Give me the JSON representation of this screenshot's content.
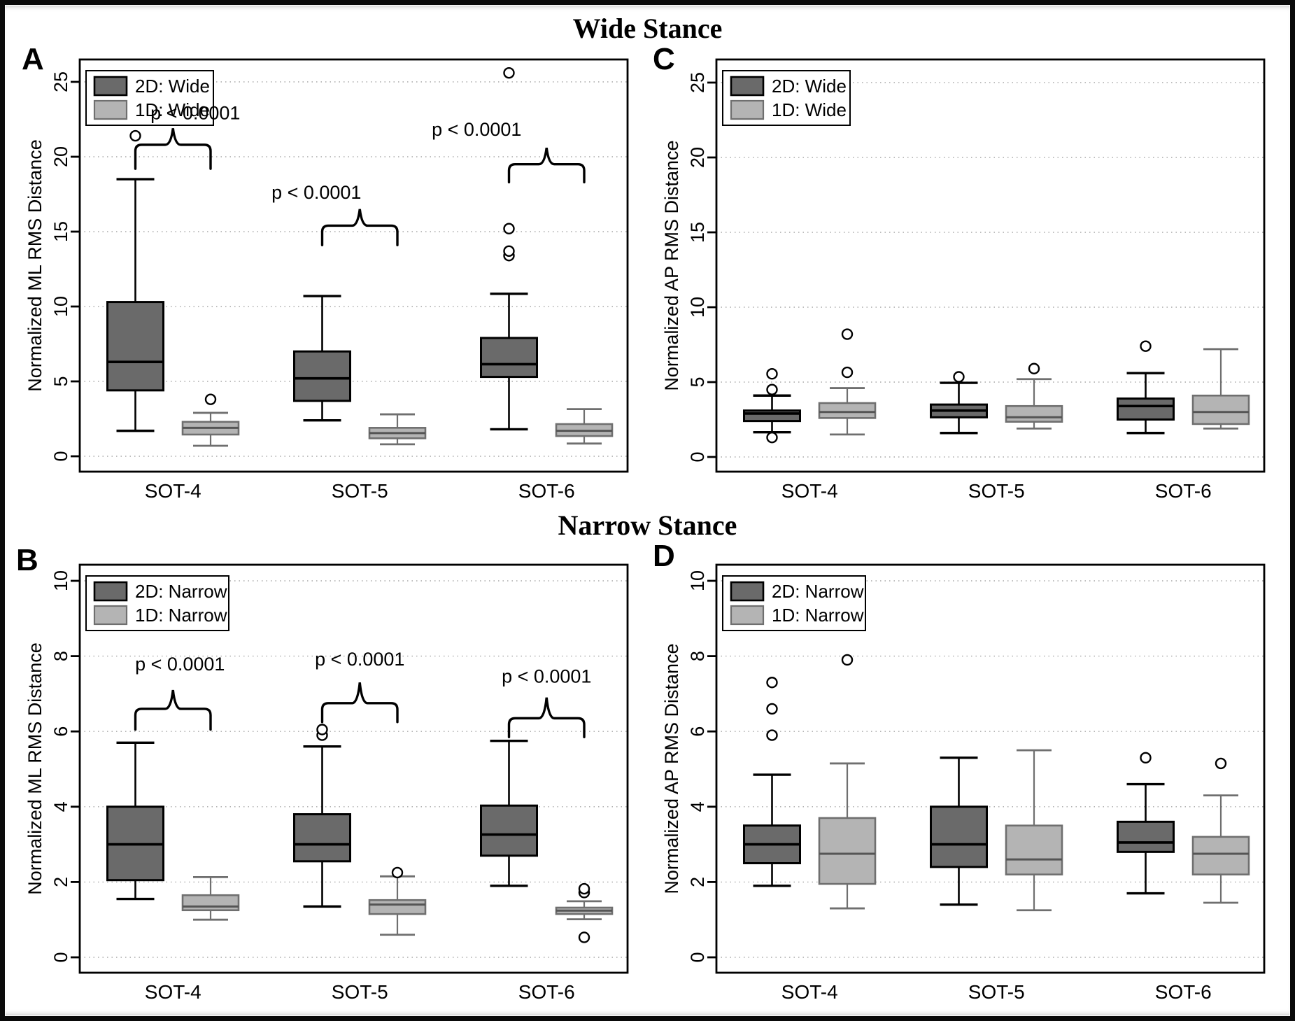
{
  "figure": {
    "top_title": "Wide Stance",
    "bottom_title": "Narrow Stance"
  },
  "colors": {
    "box_2d": "#6a6a6a",
    "box_1d": "#b4b4b4",
    "stroke_2d": "#000000",
    "stroke_1d": "#6f6f6f",
    "grid": "#a8a8a8",
    "frame": "#000000"
  },
  "chart_data": [
    {
      "id": "A",
      "letter": "A",
      "type": "boxplot",
      "position": "top-left",
      "ylabel": "Normalized ML RMS Distance",
      "yticks": [
        0,
        5,
        10,
        15,
        20,
        25
      ],
      "ylim": [
        0,
        26.5
      ],
      "grid": "dotted-horizontal",
      "legend_position": "top-left",
      "categories": [
        "SOT-4",
        "SOT-5",
        "SOT-6"
      ],
      "legend": [
        "2D: Wide",
        "1D: Wide"
      ],
      "series": [
        {
          "name": "2D: Wide",
          "boxes": [
            {
              "whislo": 1.7,
              "q1": 4.4,
              "med": 6.3,
              "q3": 10.3,
              "whishi": 18.5,
              "fliers": [
                21.4
              ]
            },
            {
              "whislo": 2.4,
              "q1": 3.7,
              "med": 5.2,
              "q3": 7.0,
              "whishi": 10.7,
              "fliers": []
            },
            {
              "whislo": 1.8,
              "q1": 5.3,
              "med": 6.15,
              "q3": 7.9,
              "whishi": 10.85,
              "fliers": [
                13.4,
                13.7,
                15.2,
                25.6
              ]
            }
          ]
        },
        {
          "name": "1D: Wide",
          "boxes": [
            {
              "whislo": 0.7,
              "q1": 1.45,
              "med": 1.9,
              "q3": 2.3,
              "whishi": 2.9,
              "fliers": [
                3.8
              ]
            },
            {
              "whislo": 0.8,
              "q1": 1.2,
              "med": 1.55,
              "q3": 1.9,
              "whishi": 2.8,
              "fliers": []
            },
            {
              "whislo": 0.85,
              "q1": 1.35,
              "med": 1.7,
              "q3": 2.15,
              "whishi": 3.15,
              "fliers": []
            }
          ]
        }
      ],
      "annotations": [
        {
          "group": 0,
          "text": "p <  0.0001",
          "bar": 20.8,
          "peak": 21.9,
          "arm": 19.2,
          "text_y": 22.5,
          "text_dx": 32
        },
        {
          "group": 1,
          "text": "p <  0.0001",
          "bar": 15.4,
          "peak": 16.5,
          "arm": 14.1,
          "text_y": 17.2,
          "text_dx": -62
        },
        {
          "group": 2,
          "text": "p <  0.0001",
          "bar": 19.5,
          "peak": 20.6,
          "arm": 18.3,
          "text_y": 21.4,
          "text_dx": -100
        }
      ]
    },
    {
      "id": "C",
      "letter": "C",
      "type": "boxplot",
      "position": "top-right",
      "ylabel": "Normalized AP RMS Distance",
      "yticks": [
        0,
        5,
        10,
        15,
        20,
        25
      ],
      "ylim": [
        0,
        26.5
      ],
      "grid": "dotted-horizontal",
      "legend_position": "top-left",
      "categories": [
        "SOT-4",
        "SOT-5",
        "SOT-6"
      ],
      "legend": [
        "2D: Wide",
        "1D: Wide"
      ],
      "series": [
        {
          "name": "2D: Wide",
          "boxes": [
            {
              "whislo": 1.65,
              "q1": 2.4,
              "med": 2.9,
              "q3": 3.1,
              "whishi": 4.1,
              "fliers": [
                1.3,
                4.5,
                5.55
              ]
            },
            {
              "whislo": 1.6,
              "q1": 2.65,
              "med": 3.1,
              "q3": 3.5,
              "whishi": 4.95,
              "fliers": [
                5.35
              ]
            },
            {
              "whislo": 1.6,
              "q1": 2.5,
              "med": 3.4,
              "q3": 3.9,
              "whishi": 5.6,
              "fliers": [
                7.4
              ]
            }
          ]
        },
        {
          "name": "1D: Wide",
          "boxes": [
            {
              "whislo": 1.5,
              "q1": 2.6,
              "med": 3.0,
              "q3": 3.6,
              "whishi": 4.6,
              "fliers": [
                5.65,
                8.2
              ]
            },
            {
              "whislo": 1.9,
              "q1": 2.35,
              "med": 2.65,
              "q3": 3.4,
              "whishi": 5.2,
              "fliers": [
                5.9
              ]
            },
            {
              "whislo": 1.9,
              "q1": 2.2,
              "med": 3.0,
              "q3": 4.1,
              "whishi": 7.2,
              "fliers": []
            }
          ]
        }
      ],
      "annotations": []
    },
    {
      "id": "B",
      "letter": "B",
      "type": "boxplot",
      "position": "bottom-left",
      "ylabel": "Normalized ML RMS Distance",
      "yticks": [
        0,
        2,
        4,
        6,
        8,
        10
      ],
      "ylim": [
        0,
        10.4
      ],
      "grid": "dotted-horizontal",
      "legend_position": "top-left",
      "categories": [
        "SOT-4",
        "SOT-5",
        "SOT-6"
      ],
      "legend": [
        "2D: Narrow",
        "1D: Narrow"
      ],
      "series": [
        {
          "name": "2D: Narrow",
          "boxes": [
            {
              "whislo": 1.55,
              "q1": 2.05,
              "med": 3.0,
              "q3": 4.0,
              "whishi": 5.7,
              "fliers": []
            },
            {
              "whislo": 1.35,
              "q1": 2.55,
              "med": 3.0,
              "q3": 3.8,
              "whishi": 5.6,
              "fliers": [
                5.9,
                6.05
              ]
            },
            {
              "whislo": 1.9,
              "q1": 2.7,
              "med": 3.26,
              "q3": 4.03,
              "whishi": 5.75,
              "fliers": []
            }
          ]
        },
        {
          "name": "1D: Narrow",
          "boxes": [
            {
              "whislo": 1.0,
              "q1": 1.25,
              "med": 1.35,
              "q3": 1.65,
              "whishi": 2.13,
              "fliers": []
            },
            {
              "whislo": 0.6,
              "q1": 1.15,
              "med": 1.4,
              "q3": 1.52,
              "whishi": 2.15,
              "fliers": [
                2.25
              ]
            },
            {
              "whislo": 1.01,
              "q1": 1.15,
              "med": 1.24,
              "q3": 1.32,
              "whishi": 1.49,
              "fliers": [
                0.53,
                1.72,
                1.82
              ]
            }
          ]
        }
      ],
      "annotations": [
        {
          "group": 0,
          "text": "p <  0.0001",
          "bar": 6.6,
          "peak": 7.1,
          "arm": 6.05,
          "text_y": 7.62,
          "text_dx": 10
        },
        {
          "group": 1,
          "text": "p <  0.0001",
          "bar": 6.75,
          "peak": 7.3,
          "arm": 6.25,
          "text_y": 7.75,
          "text_dx": 0
        },
        {
          "group": 2,
          "text": "p <  0.0001",
          "bar": 6.35,
          "peak": 6.9,
          "arm": 5.85,
          "text_y": 7.3,
          "text_dx": 0
        }
      ]
    },
    {
      "id": "D",
      "letter": "D",
      "type": "boxplot",
      "position": "bottom-right",
      "ylabel": "Normalized AP RMS Distance",
      "yticks": [
        0,
        2,
        4,
        6,
        8,
        10
      ],
      "ylim": [
        0,
        10.4
      ],
      "grid": "dotted-horizontal",
      "legend_position": "top-left",
      "categories": [
        "SOT-4",
        "SOT-5",
        "SOT-6"
      ],
      "legend": [
        "2D: Narrow",
        "1D: Narrow"
      ],
      "series": [
        {
          "name": "2D: Narrow",
          "boxes": [
            {
              "whislo": 1.9,
              "q1": 2.5,
              "med": 3.0,
              "q3": 3.5,
              "whishi": 4.85,
              "fliers": [
                5.9,
                6.6,
                7.3
              ]
            },
            {
              "whislo": 1.4,
              "q1": 2.4,
              "med": 3.0,
              "q3": 4.0,
              "whishi": 5.3,
              "fliers": []
            },
            {
              "whislo": 1.7,
              "q1": 2.8,
              "med": 3.05,
              "q3": 3.6,
              "whishi": 4.6,
              "fliers": [
                5.3
              ]
            }
          ]
        },
        {
          "name": "1D: Narrow",
          "boxes": [
            {
              "whislo": 1.3,
              "q1": 1.95,
              "med": 2.75,
              "q3": 3.7,
              "whishi": 5.15,
              "fliers": [
                7.9
              ]
            },
            {
              "whislo": 1.25,
              "q1": 2.2,
              "med": 2.6,
              "q3": 3.5,
              "whishi": 5.5,
              "fliers": []
            },
            {
              "whislo": 1.45,
              "q1": 2.2,
              "med": 2.75,
              "q3": 3.2,
              "whishi": 4.3,
              "fliers": [
                5.15
              ]
            }
          ]
        }
      ],
      "annotations": []
    }
  ]
}
